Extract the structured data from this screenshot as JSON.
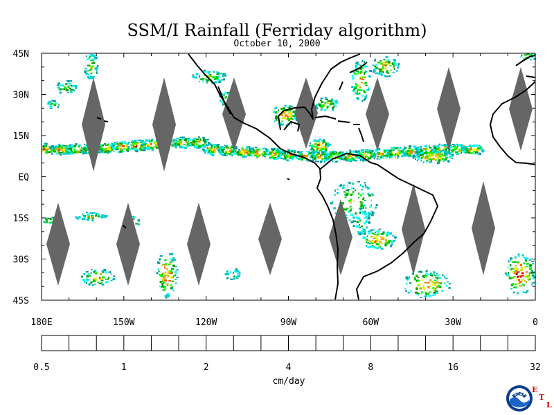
{
  "header": {
    "title": "SSM/I Rainfall (Ferriday algorithm)",
    "date": "October 10, 2000"
  },
  "map": {
    "lat_labels": [
      {
        "text": "45N",
        "lat": 45
      },
      {
        "text": "30N",
        "lat": 30
      },
      {
        "text": "15N",
        "lat": 15
      },
      {
        "text": "EQ",
        "lat": 0
      },
      {
        "text": "15S",
        "lat": -15
      },
      {
        "text": "30S",
        "lat": -30
      },
      {
        "text": "45S",
        "lat": -45
      }
    ],
    "lon_labels": [
      {
        "text": "180E",
        "lon": -180
      },
      {
        "text": "150W",
        "lon": -150
      },
      {
        "text": "120W",
        "lon": -120
      },
      {
        "text": "90W",
        "lon": -90
      },
      {
        "text": "60W",
        "lon": -60
      },
      {
        "text": "30W",
        "lon": -30
      },
      {
        "text": "0",
        "lon": 0
      }
    ],
    "colors": {
      "no_data_swath_gap": "#666666",
      "coastline": "#000000"
    }
  },
  "colorbar": {
    "unit_label": "cm/day",
    "colors": [
      "#001a80",
      "#0033c0",
      "#0055ff",
      "#009999",
      "#00cccc",
      "#00ffff",
      "#009900",
      "#00cc00",
      "#00ff00",
      "#b3b300",
      "#dddd00",
      "#ffff00",
      "#ff5500",
      "#ff8000",
      "#ffa500",
      "#990000",
      "#cc0000",
      "#ff0000"
    ],
    "tick_labels": [
      "0.5",
      "1",
      "2",
      "4",
      "8",
      "16",
      "32"
    ]
  },
  "logo": {
    "agency": "NOAA",
    "lab_letters": [
      "E",
      "T",
      "L"
    ]
  }
}
